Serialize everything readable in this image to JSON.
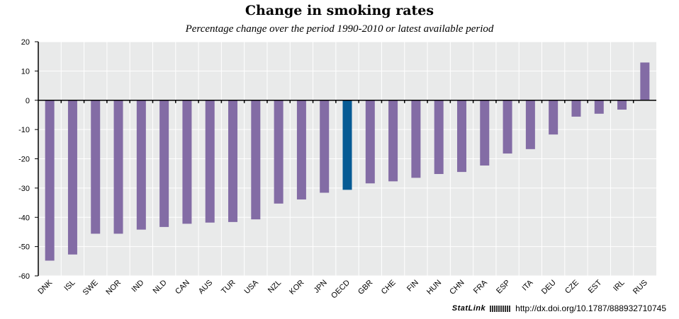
{
  "chart_data": {
    "type": "bar",
    "title": "Change in smoking rates",
    "subtitle": "Percentage change over the period 1990-2010 or latest available period",
    "xlabel": "",
    "ylabel": "",
    "ylim": [
      -60,
      20
    ],
    "yticks": [
      "20",
      "10",
      "0",
      "-10",
      "-20",
      "-30",
      "-40",
      "-50",
      "-60"
    ],
    "grid": true,
    "categories": [
      "DNK",
      "ISL",
      "SWE",
      "NOR",
      "IND",
      "NLD",
      "CAN",
      "AUS",
      "TUR",
      "USA",
      "NZL",
      "KOR",
      "JPN",
      "OECD",
      "GBR",
      "CHE",
      "FIN",
      "HUN",
      "CHN",
      "FRA",
      "ESP",
      "ITA",
      "DEU",
      "CZE",
      "EST",
      "IRL",
      "RUS"
    ],
    "values": [
      -54.8,
      -52.7,
      -45.6,
      -45.6,
      -44.2,
      -43.3,
      -42.2,
      -41.8,
      -41.6,
      -40.7,
      -35.3,
      -33.9,
      -31.6,
      -30.6,
      -28.4,
      -27.7,
      -26.5,
      -25.2,
      -24.5,
      -22.3,
      -18.2,
      -16.7,
      -11.7,
      -5.6,
      -4.6,
      -3.2,
      12.9
    ],
    "highlight": "OECD",
    "colors": {
      "bar": "#836ca5",
      "highlight": "#075b94",
      "background": "#e9eaea"
    }
  },
  "footer": {
    "statlink": "StatLink",
    "url": "http://dx.doi.org/10.1787/888932710745"
  }
}
